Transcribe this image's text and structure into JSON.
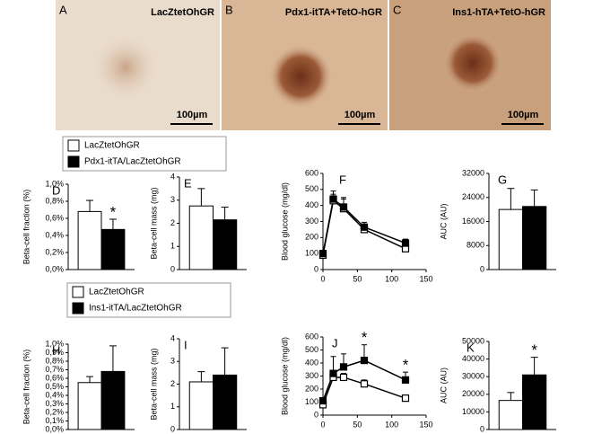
{
  "panels": [
    {
      "label": "A",
      "caption": "LacZtetOhGR",
      "scale": "100µm"
    },
    {
      "label": "B",
      "caption": "Pdx1-itTA+TetO-hGR",
      "scale": "100µm"
    },
    {
      "label": "C",
      "caption": "Ins1-hTA+TetO-hGR",
      "scale": "100µm"
    }
  ],
  "chart_data": [
    {
      "type": "bar",
      "label": "D",
      "ylabel": "Beta-cell fraction (%)",
      "ylim": [
        0,
        1
      ],
      "yticks": [
        {
          "value": 0,
          "label": "0,0%"
        },
        {
          "value": 0.2,
          "label": "0,2%"
        },
        {
          "value": 0.4,
          "label": "0,4%"
        },
        {
          "value": 0.6,
          "label": "0,6%"
        },
        {
          "value": 0.8,
          "label": "0,8%"
        },
        {
          "value": 1,
          "label": "1,0%"
        }
      ],
      "series": [
        {
          "name": "LacZtetOhGR",
          "color": "#ffffff",
          "values": [
            0.68
          ],
          "errors": [
            0.13
          ]
        },
        {
          "name": "Pdx1-itTA/LacZtetOhGR",
          "color": "#000000",
          "values": [
            0.47
          ],
          "errors": [
            0.12
          ]
        }
      ],
      "annotations": [
        {
          "text": "*",
          "series": 1,
          "point": 0
        }
      ]
    },
    {
      "type": "bar",
      "label": "E",
      "ylabel": "Beta-cell mass (mg)",
      "ylim": [
        0,
        4
      ],
      "yticks": [
        0,
        1,
        2,
        3,
        4
      ],
      "series": [
        {
          "color": "#ffffff",
          "values": [
            2.75
          ],
          "errors": [
            0.75
          ]
        },
        {
          "color": "#000000",
          "values": [
            2.15
          ],
          "errors": [
            0.55
          ]
        }
      ]
    },
    {
      "type": "line",
      "label": "F",
      "ylabel": "Blood glucose (mg/dl)",
      "ylim": [
        0,
        600
      ],
      "yticks": [
        0,
        100,
        200,
        300,
        400,
        500,
        600
      ],
      "xlim": [
        0,
        150
      ],
      "xticks": [
        0,
        50,
        100,
        150
      ],
      "x": [
        0,
        15,
        30,
        60,
        120
      ],
      "series": [
        {
          "color": "#ffffff",
          "values": [
            90,
            430,
            380,
            250,
            130
          ],
          "errors": [
            15,
            40,
            60,
            30,
            20
          ]
        },
        {
          "color": "#000000",
          "values": [
            100,
            440,
            390,
            265,
            165
          ],
          "errors": [
            15,
            50,
            60,
            30,
            25
          ]
        }
      ]
    },
    {
      "type": "bar",
      "label": "G",
      "ylabel": "AUC (AU)",
      "ylim": [
        0,
        32000
      ],
      "yticks": [
        0,
        8000,
        16000,
        24000,
        32000
      ],
      "series": [
        {
          "color": "#ffffff",
          "values": [
            20000
          ],
          "errors": [
            7000
          ]
        },
        {
          "color": "#000000",
          "values": [
            21000
          ],
          "errors": [
            5500
          ]
        }
      ]
    },
    {
      "type": "bar",
      "label": "H",
      "ylabel": "Beta-cell fraction (%)",
      "ylim": [
        0,
        1
      ],
      "yticks": [
        {
          "value": 0,
          "label": "0,0%"
        },
        {
          "value": 0.1,
          "label": "0,1%"
        },
        {
          "value": 0.2,
          "label": "0,2%"
        },
        {
          "value": 0.3,
          "label": "0,3%"
        },
        {
          "value": 0.4,
          "label": "0,4%"
        },
        {
          "value": 0.5,
          "label": "0,5%"
        },
        {
          "value": 0.6,
          "label": "0,6%"
        },
        {
          "value": 0.7,
          "label": "0,7%"
        },
        {
          "value": 0.8,
          "label": "0,8%"
        },
        {
          "value": 0.9,
          "label": "0,9%"
        },
        {
          "value": 1,
          "label": "1,0%"
        }
      ],
      "series": [
        {
          "name": "LacZtetOhGR",
          "color": "#ffffff",
          "values": [
            0.55
          ],
          "errors": [
            0.07
          ]
        },
        {
          "name": "Ins1-itTA/LacZtetOhGR",
          "color": "#000000",
          "values": [
            0.68
          ],
          "errors": [
            0.3
          ]
        }
      ]
    },
    {
      "type": "bar",
      "label": "I",
      "ylabel": "Beta-cell mass (mg)",
      "ylim": [
        0,
        4
      ],
      "yticks": [
        0,
        1,
        2,
        3,
        4
      ],
      "series": [
        {
          "color": "#ffffff",
          "values": [
            2.1
          ],
          "errors": [
            0.45
          ]
        },
        {
          "color": "#000000",
          "values": [
            2.4
          ],
          "errors": [
            1.2
          ]
        }
      ]
    },
    {
      "type": "line",
      "label": "J",
      "ylabel": "Blood glucose (mg/dl)",
      "ylim": [
        0,
        600
      ],
      "yticks": [
        0,
        100,
        200,
        300,
        400,
        500,
        600
      ],
      "xlim": [
        0,
        150
      ],
      "xticks": [
        0,
        50,
        100,
        150
      ],
      "x": [
        0,
        15,
        30,
        60,
        120
      ],
      "series": [
        {
          "color": "#ffffff",
          "values": [
            80,
            290,
            290,
            240,
            130
          ],
          "errors": [
            15,
            40,
            30,
            30,
            20
          ]
        },
        {
          "color": "#000000",
          "values": [
            110,
            320,
            370,
            420,
            270
          ],
          "errors": [
            20,
            130,
            100,
            120,
            60
          ]
        }
      ],
      "annotations": [
        {
          "text": "*",
          "series": 1,
          "point": 3
        },
        {
          "text": "*",
          "series": 1,
          "point": 4
        }
      ]
    },
    {
      "type": "bar",
      "label": "K",
      "ylabel": "AUC (AU)",
      "ylim": [
        0,
        50000
      ],
      "yticks": [
        0,
        10000,
        20000,
        30000,
        40000,
        50000
      ],
      "series": [
        {
          "color": "#ffffff",
          "values": [
            16500
          ],
          "errors": [
            4500
          ]
        },
        {
          "color": "#000000",
          "values": [
            31000
          ],
          "errors": [
            10000
          ]
        }
      ],
      "annotations": [
        {
          "text": "*",
          "series": 1,
          "point": 0
        }
      ]
    }
  ]
}
